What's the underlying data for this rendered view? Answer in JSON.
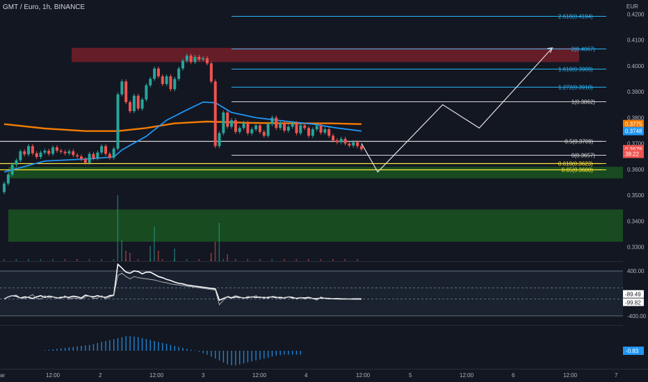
{
  "header": {
    "title": "GMT / Euro, 1h, BINANCE",
    "currency": "EUR"
  },
  "colors": {
    "background": "#131722",
    "bull": "#26a69a",
    "bear": "#ef5350",
    "ema_short": "#2196f3",
    "ema_long": "#f57c00",
    "fib_line": "#29b6f6",
    "fib_key": "#d7d7d7",
    "golden_zone": "#ffeb3b",
    "supply_zone": "#7a1f2a",
    "demand_zone": "#1b5e20",
    "projection": "#e0e0e0"
  },
  "chart_data": [
    {
      "type": "line",
      "title": "",
      "ylabel": "EUR",
      "ylim": [
        0.3245,
        0.4255
      ],
      "price_ticks": [
        "0.4200",
        "0.4100",
        "0.4000",
        "0.3900",
        "0.3800",
        "0.3700",
        "0.3600",
        "0.3500",
        "0.3400",
        "0.3300"
      ],
      "x_ticks": [
        "ar",
        "12:00",
        "2",
        "12:00",
        "3",
        "12:00",
        "4",
        "12:00",
        "5",
        "12:00",
        "6",
        "12:00",
        "7"
      ],
      "candles": [
        {
          "x": 0,
          "o": 0.3512,
          "c": 0.3545
        },
        {
          "x": 1,
          "o": 0.3545,
          "c": 0.358
        },
        {
          "x": 2,
          "o": 0.358,
          "c": 0.3618
        },
        {
          "x": 3,
          "o": 0.3618,
          "c": 0.3635
        },
        {
          "x": 4,
          "o": 0.3635,
          "c": 0.367
        },
        {
          "x": 5,
          "o": 0.367,
          "c": 0.3658
        },
        {
          "x": 6,
          "o": 0.3658,
          "c": 0.369
        },
        {
          "x": 7,
          "o": 0.369,
          "c": 0.3662
        },
        {
          "x": 8,
          "o": 0.3662,
          "c": 0.3648
        },
        {
          "x": 9,
          "o": 0.3648,
          "c": 0.3665
        },
        {
          "x": 10,
          "o": 0.3665,
          "c": 0.3672
        },
        {
          "x": 11,
          "o": 0.3672,
          "c": 0.366
        },
        {
          "x": 12,
          "o": 0.366,
          "c": 0.3685
        },
        {
          "x": 13,
          "o": 0.3685,
          "c": 0.3672
        },
        {
          "x": 14,
          "o": 0.3672,
          "c": 0.3668
        },
        {
          "x": 15,
          "o": 0.3668,
          "c": 0.3662
        },
        {
          "x": 16,
          "o": 0.3662,
          "c": 0.367
        },
        {
          "x": 17,
          "o": 0.367,
          "c": 0.3655
        },
        {
          "x": 18,
          "o": 0.3655,
          "c": 0.365
        },
        {
          "x": 19,
          "o": 0.365,
          "c": 0.364
        },
        {
          "x": 20,
          "o": 0.364,
          "c": 0.3625
        },
        {
          "x": 21,
          "o": 0.3625,
          "c": 0.366
        },
        {
          "x": 22,
          "o": 0.366,
          "c": 0.3642
        },
        {
          "x": 23,
          "o": 0.3642,
          "c": 0.3665
        },
        {
          "x": 24,
          "o": 0.3665,
          "c": 0.369
        },
        {
          "x": 25,
          "o": 0.369,
          "c": 0.366
        },
        {
          "x": 26,
          "o": 0.366,
          "c": 0.3645
        },
        {
          "x": 27,
          "o": 0.3645,
          "c": 0.368
        },
        {
          "x": 28,
          "o": 0.368,
          "c": 0.389
        },
        {
          "x": 29,
          "o": 0.389,
          "c": 0.394
        },
        {
          "x": 30,
          "o": 0.394,
          "c": 0.386
        },
        {
          "x": 31,
          "o": 0.386,
          "c": 0.3825
        },
        {
          "x": 32,
          "o": 0.3825,
          "c": 0.3885
        },
        {
          "x": 33,
          "o": 0.3885,
          "c": 0.3835
        },
        {
          "x": 34,
          "o": 0.3835,
          "c": 0.387
        },
        {
          "x": 35,
          "o": 0.387,
          "c": 0.3925
        },
        {
          "x": 36,
          "o": 0.3925,
          "c": 0.395
        },
        {
          "x": 37,
          "o": 0.395,
          "c": 0.399
        },
        {
          "x": 38,
          "o": 0.399,
          "c": 0.396
        },
        {
          "x": 39,
          "o": 0.396,
          "c": 0.393
        },
        {
          "x": 40,
          "o": 0.393,
          "c": 0.396
        },
        {
          "x": 41,
          "o": 0.396,
          "c": 0.391
        },
        {
          "x": 42,
          "o": 0.391,
          "c": 0.395
        },
        {
          "x": 43,
          "o": 0.395,
          "c": 0.399
        },
        {
          "x": 44,
          "o": 0.399,
          "c": 0.402
        },
        {
          "x": 45,
          "o": 0.402,
          "c": 0.404
        },
        {
          "x": 46,
          "o": 0.404,
          "c": 0.4015
        },
        {
          "x": 47,
          "o": 0.4015,
          "c": 0.4035
        },
        {
          "x": 48,
          "o": 0.4035,
          "c": 0.4025
        },
        {
          "x": 49,
          "o": 0.4025,
          "c": 0.403
        },
        {
          "x": 50,
          "o": 0.403,
          "c": 0.401
        },
        {
          "x": 51,
          "o": 0.401,
          "c": 0.394
        },
        {
          "x": 52,
          "o": 0.394,
          "c": 0.369
        },
        {
          "x": 53,
          "o": 0.369,
          "c": 0.374
        },
        {
          "x": 54,
          "o": 0.374,
          "c": 0.382
        },
        {
          "x": 55,
          "o": 0.382,
          "c": 0.3765
        },
        {
          "x": 56,
          "o": 0.3765,
          "c": 0.379
        },
        {
          "x": 57,
          "o": 0.379,
          "c": 0.3745
        },
        {
          "x": 58,
          "o": 0.3745,
          "c": 0.376
        },
        {
          "x": 59,
          "o": 0.376,
          "c": 0.378
        },
        {
          "x": 60,
          "o": 0.378,
          "c": 0.374
        },
        {
          "x": 61,
          "o": 0.374,
          "c": 0.3755
        },
        {
          "x": 62,
          "o": 0.3755,
          "c": 0.377
        },
        {
          "x": 63,
          "o": 0.377,
          "c": 0.3745
        },
        {
          "x": 64,
          "o": 0.3745,
          "c": 0.373
        },
        {
          "x": 65,
          "o": 0.373,
          "c": 0.3775
        },
        {
          "x": 66,
          "o": 0.3775,
          "c": 0.38
        },
        {
          "x": 67,
          "o": 0.38,
          "c": 0.376
        },
        {
          "x": 68,
          "o": 0.376,
          "c": 0.378
        },
        {
          "x": 69,
          "o": 0.378,
          "c": 0.375
        },
        {
          "x": 70,
          "o": 0.375,
          "c": 0.3765
        },
        {
          "x": 71,
          "o": 0.3765,
          "c": 0.3778
        },
        {
          "x": 72,
          "o": 0.3778,
          "c": 0.374
        },
        {
          "x": 73,
          "o": 0.374,
          "c": 0.377
        },
        {
          "x": 74,
          "o": 0.377,
          "c": 0.376
        },
        {
          "x": 75,
          "o": 0.376,
          "c": 0.373
        },
        {
          "x": 76,
          "o": 0.373,
          "c": 0.3755
        },
        {
          "x": 77,
          "o": 0.3755,
          "c": 0.3768
        },
        {
          "x": 78,
          "o": 0.3768,
          "c": 0.3742
        },
        {
          "x": 79,
          "o": 0.3742,
          "c": 0.3755
        },
        {
          "x": 80,
          "o": 0.3755,
          "c": 0.373
        },
        {
          "x": 81,
          "o": 0.373,
          "c": 0.3712
        },
        {
          "x": 82,
          "o": 0.3712,
          "c": 0.3705
        },
        {
          "x": 83,
          "o": 0.3705,
          "c": 0.3718
        },
        {
          "x": 84,
          "o": 0.3718,
          "c": 0.37
        },
        {
          "x": 85,
          "o": 0.37,
          "c": 0.3692
        },
        {
          "x": 86,
          "o": 0.3692,
          "c": 0.3705
        },
        {
          "x": 87,
          "o": 0.3705,
          "c": 0.369
        },
        {
          "x": 88,
          "o": 0.369,
          "c": 0.3678
        }
      ],
      "ema_short": [
        [
          0,
          0.359
        ],
        [
          10,
          0.3632
        ],
        [
          20,
          0.364
        ],
        [
          27,
          0.3648
        ],
        [
          29,
          0.3675
        ],
        [
          35,
          0.3728
        ],
        [
          40,
          0.379
        ],
        [
          45,
          0.383
        ],
        [
          49,
          0.386
        ],
        [
          52,
          0.3858
        ],
        [
          56,
          0.382
        ],
        [
          62,
          0.38
        ],
        [
          70,
          0.3785
        ],
        [
          76,
          0.3775
        ],
        [
          82,
          0.376
        ],
        [
          88,
          0.3748
        ]
      ],
      "ema_long": [
        [
          0,
          0.3775
        ],
        [
          10,
          0.3758
        ],
        [
          20,
          0.3748
        ],
        [
          28,
          0.3748
        ],
        [
          35,
          0.376
        ],
        [
          42,
          0.3778
        ],
        [
          50,
          0.3785
        ],
        [
          60,
          0.378
        ],
        [
          70,
          0.3778
        ],
        [
          80,
          0.3778
        ],
        [
          88,
          0.3775
        ]
      ],
      "fib_levels": [
        {
          "ratio": "2.618",
          "label": "2.618(0.4194)",
          "value": 0.4194,
          "key": false
        },
        {
          "ratio": "2",
          "label": "2(0.4067)",
          "value": 0.4067,
          "key": false
        },
        {
          "ratio": "1.618",
          "label": "1.618(0.3989)",
          "value": 0.3989,
          "key": false
        },
        {
          "ratio": "1.272",
          "label": "1.272(0.3918)",
          "value": 0.3918,
          "key": false
        },
        {
          "ratio": "1",
          "label": "1(0.3862)",
          "value": 0.3862,
          "key": true
        },
        {
          "ratio": "0.5",
          "label": "0.5(0.3709)",
          "value": 0.3709,
          "key": true
        },
        {
          "ratio": "0",
          "label": "0(0.3657)",
          "value": 0.3657,
          "key": true
        },
        {
          "ratio": "0.618",
          "label": "0.618(0.3623)",
          "value": 0.3623,
          "key": false
        },
        {
          "ratio": "0.65",
          "label": "0.65(0.3600)",
          "value": 0.36,
          "key": false
        }
      ],
      "zones": [
        {
          "name": "supply",
          "from": 0.4015,
          "to": 0.407
        },
        {
          "name": "demand-upper",
          "from": 0.3565,
          "to": 0.361
        },
        {
          "name": "demand-lower",
          "from": 0.332,
          "to": 0.3445
        }
      ],
      "projection": [
        [
          88,
          0.37
        ],
        [
          92,
          0.359
        ],
        [
          108,
          0.385
        ],
        [
          117,
          0.376
        ],
        [
          135,
          0.407
        ]
      ],
      "price_labels": [
        {
          "text": "0.3775",
          "value": 0.3775,
          "color": "#f57c00"
        },
        {
          "text": "0.3748",
          "value": 0.3748,
          "color": "#2196f3"
        },
        {
          "text": "0.3678",
          "value": 0.3678,
          "color": "#ef5350"
        },
        {
          "text": "38:22",
          "value": 0.366,
          "color": "#ef5350"
        }
      ],
      "volume": [
        {
          "x": 28,
          "v": 95
        },
        {
          "x": 29,
          "v": 30
        },
        {
          "x": 30,
          "v": 15
        },
        {
          "x": 31,
          "v": 12
        },
        {
          "x": 36,
          "v": 22
        },
        {
          "x": 37,
          "v": 50
        },
        {
          "x": 38,
          "v": 15
        },
        {
          "x": 42,
          "v": 18
        },
        {
          "x": 52,
          "v": 28
        },
        {
          "x": 53,
          "v": 55
        },
        {
          "x": 51,
          "v": 12
        },
        {
          "x": 55,
          "v": 10
        }
      ]
    },
    {
      "type": "line",
      "title": "",
      "ylim": [
        -550,
        550
      ],
      "y_ticks": [
        "400.00",
        "-400.00"
      ],
      "levels": [
        {
          "label": "-89.49",
          "value": -89.49
        },
        {
          "label": "-99.82",
          "value": -99.82
        }
      ],
      "series": [
        {
          "color": "#ffffff",
          "values": [
            -100,
            -60,
            -40,
            -50,
            -80,
            -60,
            -70,
            -90,
            -60,
            -40,
            -70,
            -50,
            -60,
            -80,
            -70,
            -60,
            -70,
            -50,
            -60,
            -80,
            -30,
            -50,
            -60,
            -40,
            -60,
            -70,
            -40,
            -30,
            520,
            450,
            380,
            360,
            400,
            390,
            350,
            380,
            380,
            340,
            300,
            280,
            250,
            230,
            200,
            180,
            170,
            150,
            140,
            130,
            120,
            110,
            100,
            90,
            80,
            -120,
            -90,
            -60,
            -80,
            -60,
            -70,
            -80,
            -75,
            -60,
            -70,
            -65,
            -80,
            -70,
            -60,
            -75,
            -70,
            -80,
            -60,
            -70,
            -90,
            -75,
            -80,
            -70,
            -90,
            -95,
            -80,
            -85,
            -90,
            -95,
            -95,
            -98,
            -99,
            -99,
            -100,
            -100,
            -99.82
          ]
        },
        {
          "color": "#b0b0b0",
          "values": [
            -100,
            -60,
            -40,
            -30,
            -80,
            -90,
            -60,
            -20,
            -90,
            -100,
            -40,
            -80,
            -60,
            -70,
            -90,
            -40,
            -100,
            -80,
            -90,
            -100,
            -60,
            -40,
            -90,
            -80,
            -40,
            -100,
            -60,
            -40,
            320,
            360,
            300,
            260,
            300,
            280,
            270,
            260,
            250,
            240,
            220,
            200,
            190,
            170,
            160,
            150,
            140,
            130,
            120,
            110,
            100,
            90,
            80,
            70,
            60,
            -200,
            -120,
            -50,
            -70,
            -40,
            -60,
            -90,
            -50,
            -70,
            -40,
            -80,
            -60,
            -90,
            -50,
            -60,
            -100,
            -70,
            -60,
            -90,
            -80,
            -70,
            -100,
            -80,
            -90,
            -120,
            -60,
            -90,
            -100,
            -90,
            -85,
            -90,
            -92,
            -95,
            -90,
            -89,
            -89.49
          ]
        }
      ]
    },
    {
      "type": "bar",
      "title": "",
      "last_value": "-0.83",
      "values": [
        0.1,
        0.2,
        0.3,
        0.4,
        0.5,
        0.6,
        0.7,
        0.8,
        0.9,
        1.0,
        1.1,
        1.2,
        1.4,
        1.6,
        1.8,
        2.0,
        2.2,
        2.4,
        2.6,
        2.8,
        3.0,
        3.0,
        2.9,
        2.8,
        2.6,
        2.4,
        2.2,
        2.0,
        1.8,
        1.6,
        1.4,
        1.2,
        1.0,
        0.8,
        0.6,
        0.4,
        0.2,
        0.1,
        -0.2,
        -0.5,
        -0.8,
        -1.2,
        -1.6,
        -2.0,
        -2.4,
        -2.8,
        -3.0,
        -3.0,
        -2.8,
        -2.6,
        -2.4,
        -2.2,
        -2.0,
        -1.8,
        -1.6,
        -1.4,
        -1.2,
        -1.0,
        -0.9,
        -0.8,
        -0.8,
        -0.8,
        -0.8,
        -0.83
      ]
    }
  ]
}
